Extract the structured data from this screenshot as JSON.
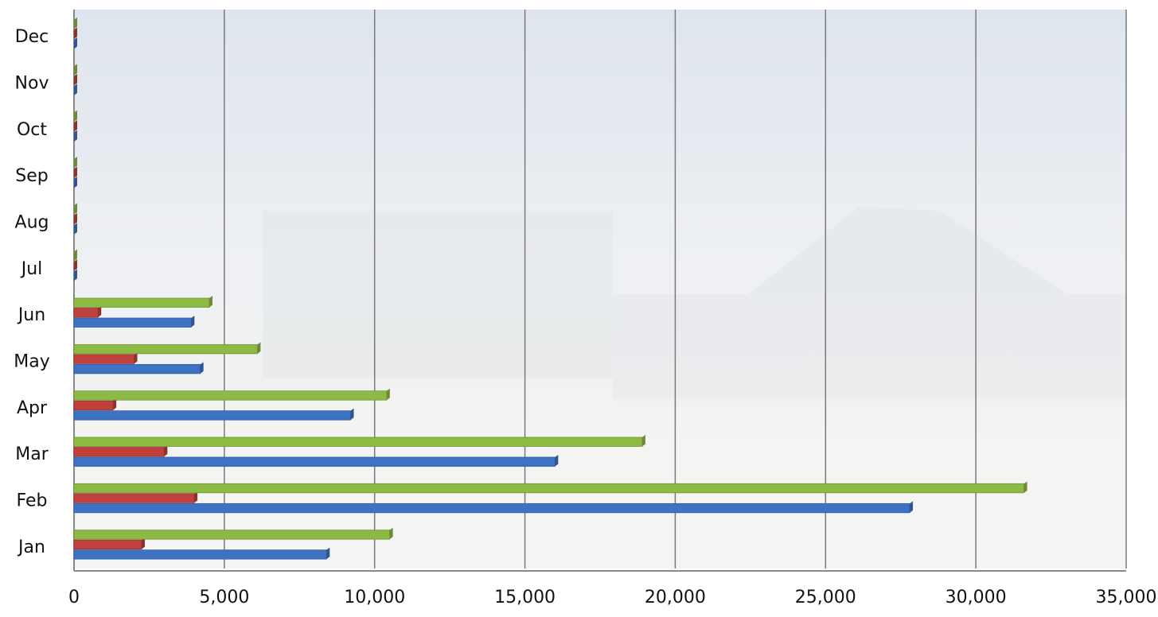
{
  "chart_data": {
    "type": "bar",
    "orientation": "horizontal",
    "categories": [
      "Jan",
      "Feb",
      "Mar",
      "Apr",
      "May",
      "Jun",
      "Jul",
      "Aug",
      "Sep",
      "Oct",
      "Nov",
      "Dec"
    ],
    "series": [
      {
        "color": "#3e73c4",
        "values": [
          8400,
          27800,
          16000,
          9200,
          4200,
          3900,
          0,
          0,
          0,
          0,
          0,
          0
        ]
      },
      {
        "color": "#c0413c",
        "values": [
          2250,
          4000,
          3000,
          1300,
          2000,
          800,
          0,
          0,
          0,
          0,
          0,
          0
        ]
      },
      {
        "color": "#8dba45",
        "values": [
          10500,
          31600,
          18900,
          10400,
          6100,
          4500,
          0,
          0,
          0,
          0,
          0,
          0
        ]
      }
    ],
    "xlim": [
      0,
      35000
    ],
    "xticks": [
      0,
      {
        "value": 5000,
        "label": "5,000"
      },
      {
        "value": 10000,
        "label": "10,000"
      },
      {
        "value": 15000,
        "label": "15,000"
      },
      {
        "value": 20000,
        "label": "20,000"
      },
      {
        "value": 25000,
        "label": "25,000"
      },
      {
        "value": 30000,
        "label": "30,000"
      },
      {
        "value": 35000,
        "label": "35,000"
      }
    ],
    "grid": true
  }
}
